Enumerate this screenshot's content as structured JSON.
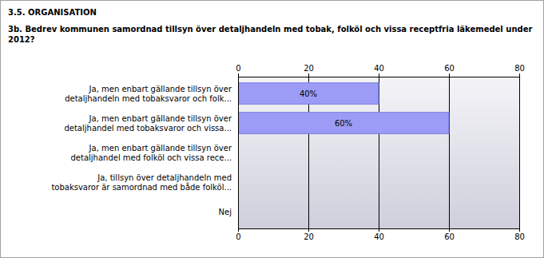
{
  "chart_data": {
    "type": "bar",
    "orientation": "horizontal",
    "title": "3.5. ORGANISATION",
    "subtitle": "3b. Bedrev kommunen samordnad tillsyn över detaljhandeln med tobak, folköl och vissa receptfria läkemedel under 2012?",
    "categories": [
      "Ja, men enbart gällande tillsyn över detaljhandeln med tobaksvaror och folk...",
      "Ja, men enbart gällande tillsyn över detaljhandel med tobaksvaror och vissa...",
      "Ja, men enbart gällande tillsyn över detaljhandel med folköl och vissa rece...",
      "Ja, tillsyn över detaljhandeln med tobaksvaror är samordnad med både folköl...",
      "Nej"
    ],
    "values": [
      40,
      60,
      0,
      0,
      0
    ],
    "value_labels": [
      "40%",
      "60%",
      null,
      null,
      null
    ],
    "data_labels": true,
    "color": "#9c9cf6",
    "xlim": [
      0,
      80
    ],
    "xticks": [
      0,
      20,
      40,
      60,
      80
    ],
    "grid": true
  }
}
